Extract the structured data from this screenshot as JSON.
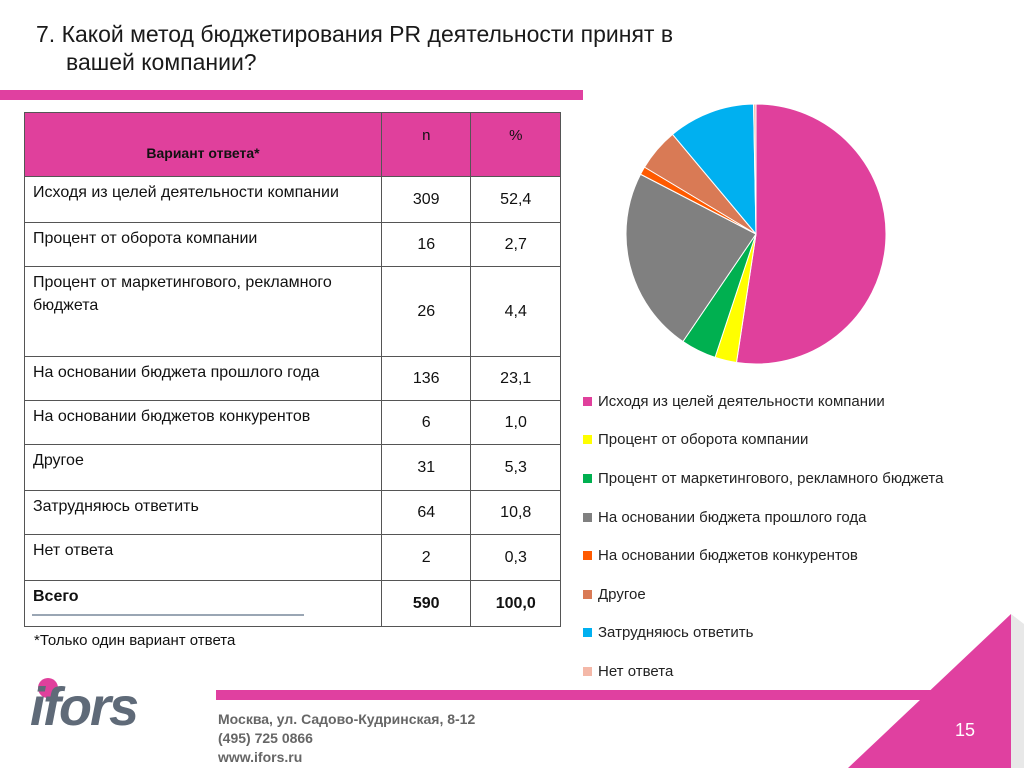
{
  "title": {
    "line1": "7. Какой метод бюджетирования PR деятельности принят в",
    "line2": "вашей компании?"
  },
  "table": {
    "headers": {
      "label": "Вариант ответа*",
      "n": "n",
      "pct": "%"
    },
    "rows": [
      {
        "label": "Исходя из целей деятельности компании",
        "n": "309",
        "pct": "52,4"
      },
      {
        "label": "Процент от оборота компании",
        "n": "16",
        "pct": "2,7"
      },
      {
        "label": "Процент от маркетингового, рекламного бюджета",
        "n": "26",
        "pct": "4,4"
      },
      {
        "label": "На основании бюджета прошлого года",
        "n": "136",
        "pct": "23,1"
      },
      {
        "label": "На основании бюджетов конкурентов",
        "n": "6",
        "pct": "1,0"
      },
      {
        "label": "Другое",
        "n": "31",
        "pct": "5,3"
      },
      {
        "label": "Затрудняюсь ответить",
        "n": "64",
        "pct": "10,8"
      },
      {
        "label": "Нет ответа",
        "n": "2",
        "pct": "0,3"
      }
    ],
    "total": {
      "label": "Всего",
      "n": "590",
      "pct": "100,0"
    }
  },
  "footnote": "*Только один вариант ответа",
  "chart_data": {
    "type": "pie",
    "categories": [
      "Исходя из целей деятельности компании",
      "Процент от оборота компании",
      "Процент от маркетингового, рекламного бюджета",
      "На основании бюджета прошлого года",
      "На основании бюджетов конкурентов",
      "Другое",
      "Затрудняюсь ответить",
      "Нет ответа"
    ],
    "values": [
      52.4,
      2.7,
      4.4,
      23.1,
      1.0,
      5.3,
      10.8,
      0.3
    ],
    "colors": [
      "#e0409c",
      "#ffff00",
      "#00b050",
      "#808080",
      "#ff5a00",
      "#d97a55",
      "#00b0f0",
      "#f4b8a8"
    ],
    "legend_position": "bottom"
  },
  "footer": {
    "address_line1": "Москва, ул. Садово-Кудринская, 8-12",
    "address_line2": "(495) 725 0866",
    "address_line3": "www.ifors.ru",
    "logo_text": "ifors",
    "page_number": "15"
  },
  "colors": {
    "accent": "#e040a0",
    "logo_gray": "#5f6a78"
  }
}
